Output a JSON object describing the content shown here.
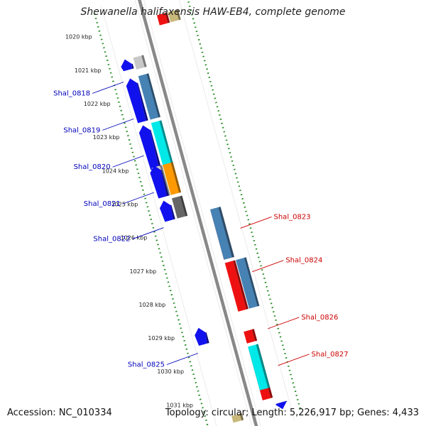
{
  "title": "Shewanella halifaxensis HAW-EB4, complete genome",
  "footer": {
    "accession": "Accession: NC_010334",
    "summary": "Topology: circular; Length: 5,226,917 bp; Genes: 4,433"
  },
  "colors": {
    "minus_strand_label": "#0000bb",
    "plus_strand_label": "#cc0000",
    "tick": "#228b22",
    "backbone": "#888888"
  },
  "ticks": [
    {
      "label": "1020 kbp",
      "kbp": 1020
    },
    {
      "label": "1021 kbp",
      "kbp": 1021
    },
    {
      "label": "1022 kbp",
      "kbp": 1022
    },
    {
      "label": "1023 kbp",
      "kbp": 1023
    },
    {
      "label": "1024 kbp",
      "kbp": 1024
    },
    {
      "label": "1025 kbp",
      "kbp": 1025
    },
    {
      "label": "1026 kbp",
      "kbp": 1026
    },
    {
      "label": "1027 kbp",
      "kbp": 1027
    },
    {
      "label": "1028 kbp",
      "kbp": 1028
    },
    {
      "label": "1029 kbp",
      "kbp": 1029
    },
    {
      "label": "1030 kbp",
      "kbp": 1030
    },
    {
      "label": "1031 kbp",
      "kbp": 1031
    }
  ],
  "gene_labels": [
    {
      "name": "Shal_0818",
      "strand": "minus"
    },
    {
      "name": "Shal_0819",
      "strand": "minus"
    },
    {
      "name": "Shal_0820",
      "strand": "minus"
    },
    {
      "name": "Shal_0821",
      "strand": "minus"
    },
    {
      "name": "Shal_0822",
      "strand": "minus"
    },
    {
      "name": "Shal_0825",
      "strand": "minus"
    },
    {
      "name": "Shal_0823",
      "strand": "plus"
    },
    {
      "name": "Shal_0824",
      "strand": "plus"
    },
    {
      "name": "Shal_0826",
      "strand": "plus"
    },
    {
      "name": "Shal_0827",
      "strand": "plus"
    }
  ],
  "features": [
    {
      "kind": "cog",
      "color": "#ee1111",
      "strand": "plus",
      "start_kbp": 1019.9,
      "end_kbp": 1020.2
    },
    {
      "kind": "cog",
      "color": "#c8b87a",
      "strand": "plus",
      "start_kbp": 1019.9,
      "end_kbp": 1020.2
    },
    {
      "kind": "cog",
      "color": "#c8c8c8",
      "strand": "minus",
      "start_kbp": 1020.9,
      "end_kbp": 1021.25
    },
    {
      "kind": "cds",
      "color": "#1111ee",
      "strand": "minus",
      "start_kbp": 1020.88,
      "end_kbp": 1021.2
    },
    {
      "kind": "cog",
      "color": "#4682b4",
      "strand": "minus",
      "start_kbp": 1021.45,
      "end_kbp": 1022.75
    },
    {
      "kind": "cds",
      "color": "#1111ee",
      "strand": "minus",
      "start_kbp": 1021.45,
      "end_kbp": 1022.75
    },
    {
      "kind": "cog",
      "color": "#00e8e8",
      "strand": "minus",
      "start_kbp": 1022.85,
      "end_kbp": 1024.15
    },
    {
      "kind": "cds",
      "color": "#1111ee",
      "strand": "minus",
      "start_kbp": 1022.85,
      "end_kbp": 1024.15
    },
    {
      "kind": "cog",
      "color": "#ff9900",
      "strand": "minus",
      "start_kbp": 1024.1,
      "end_kbp": 1025.0
    },
    {
      "kind": "cog",
      "color": "#c8c8c8",
      "strand": "minus",
      "start_kbp": 1024.1,
      "end_kbp": 1025.0
    },
    {
      "kind": "cds",
      "color": "#1111ee",
      "strand": "minus",
      "start_kbp": 1024.05,
      "end_kbp": 1025.0
    },
    {
      "kind": "cog",
      "color": "#666666",
      "strand": "minus",
      "start_kbp": 1025.1,
      "end_kbp": 1025.7
    },
    {
      "kind": "cds",
      "color": "#1111ee",
      "strand": "minus",
      "start_kbp": 1025.1,
      "end_kbp": 1025.7
    },
    {
      "kind": "cog",
      "color": "#ee1111",
      "strand": "plus",
      "start_kbp": 1025.75,
      "end_kbp": 1027.2
    },
    {
      "kind": "cog",
      "color": "#4682b4",
      "strand": "plus",
      "start_kbp": 1025.7,
      "end_kbp": 1027.2
    },
    {
      "kind": "cog",
      "color": "#ee1111",
      "strand": "plus",
      "start_kbp": 1027.3,
      "end_kbp": 1028.75
    },
    {
      "kind": "cog",
      "color": "#4682b4",
      "strand": "plus",
      "start_kbp": 1027.3,
      "end_kbp": 1028.75
    },
    {
      "kind": "cds",
      "color": "#1111ee",
      "strand": "minus",
      "start_kbp": 1028.9,
      "end_kbp": 1029.4
    },
    {
      "kind": "cog",
      "color": "#ee1111",
      "strand": "plus",
      "start_kbp": 1029.35,
      "end_kbp": 1029.7
    },
    {
      "kind": "cog",
      "color": "#ee1111",
      "strand": "plus",
      "start_kbp": 1029.9,
      "end_kbp": 1031.4
    },
    {
      "kind": "cog",
      "color": "#00e8e8",
      "strand": "plus",
      "start_kbp": 1029.8,
      "end_kbp": 1031.1
    },
    {
      "kind": "cog",
      "color": "#c8b87a",
      "strand": "minus",
      "start_kbp": 1031.6,
      "end_kbp": 1031.8
    },
    {
      "kind": "cds",
      "color": "#1111ee",
      "strand": "plus",
      "start_kbp": 1031.6,
      "end_kbp": 1031.8
    }
  ]
}
